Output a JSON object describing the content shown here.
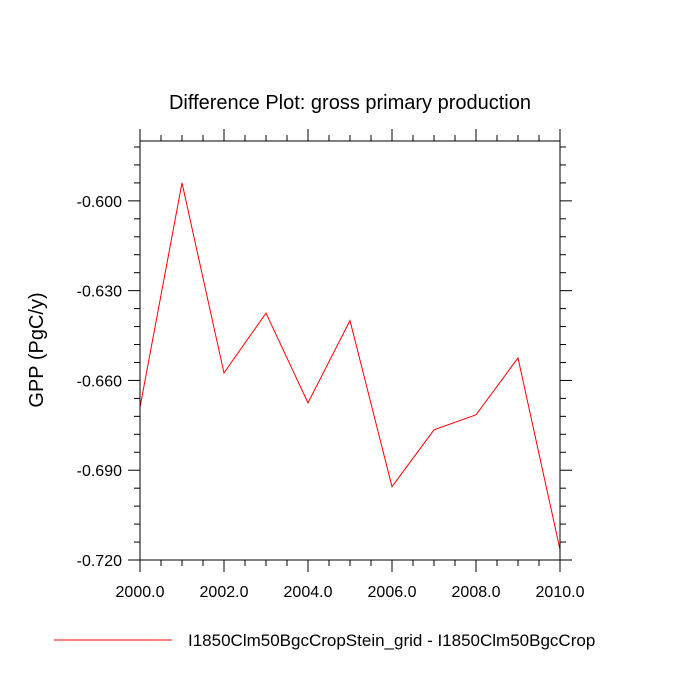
{
  "chart_data": {
    "type": "line",
    "title": "Difference Plot: gross primary production",
    "xlabel": "",
    "ylabel": "GPP  (PgC/y)",
    "xlim": [
      2000,
      2010
    ],
    "ylim": [
      -0.72,
      -0.7
    ],
    "xticks": [
      "2000.0",
      "2002.0",
      "2004.0",
      "2006.0",
      "2008.0",
      "2010.0"
    ],
    "yticks": [
      "-0.600",
      "-0.630",
      "-0.660",
      "-0.690",
      "-0.720"
    ],
    "grid": false,
    "legend_position": "bottom",
    "x": [
      2000,
      2001,
      2002,
      2003,
      2004,
      2005,
      2006,
      2007,
      2008,
      2009,
      2010
    ],
    "series": [
      {
        "name": "I1850Clm50BgcCropStein_grid - I1850Clm50BgcCrop",
        "color": "#ff0000",
        "values": [
          -0.669,
          -0.594,
          -0.6575,
          -0.6375,
          -0.6675,
          -0.64,
          -0.6955,
          -0.6765,
          -0.6715,
          -0.6525,
          -0.7165
        ]
      }
    ]
  }
}
